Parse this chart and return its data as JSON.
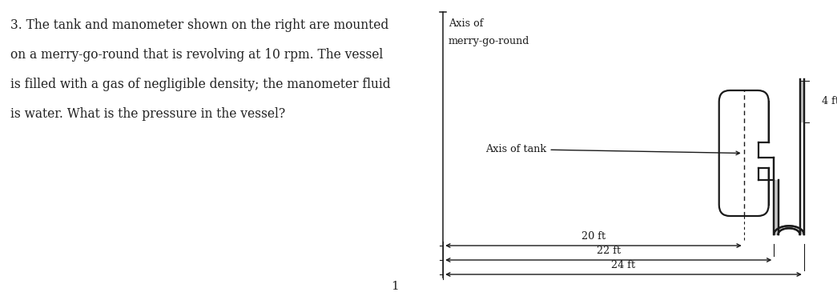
{
  "background_color": "#ffffff",
  "text_color": "#222222",
  "problem_text_lines": [
    "3. The tank and manometer shown on the right are mounted",
    "on a merry-go-round that is revolving at 10 rpm. The vessel",
    "is filled with a gas of negligible density; the manometer fluid",
    "is water. What is the pressure in the vessel?"
  ],
  "page_number": "1",
  "diagram": {
    "axis_mgr_label_line1": "Axis of",
    "axis_mgr_label_line2": "merry-go-round",
    "axis_tank_label": "Axis of tank",
    "dim_20ft": "20 ft",
    "dim_22ft": "22 ft",
    "dim_24ft": "24 ft",
    "dim_4ft": "4 ft",
    "line_color": "#1a1a1a",
    "water_color": "#c8c8c8"
  }
}
